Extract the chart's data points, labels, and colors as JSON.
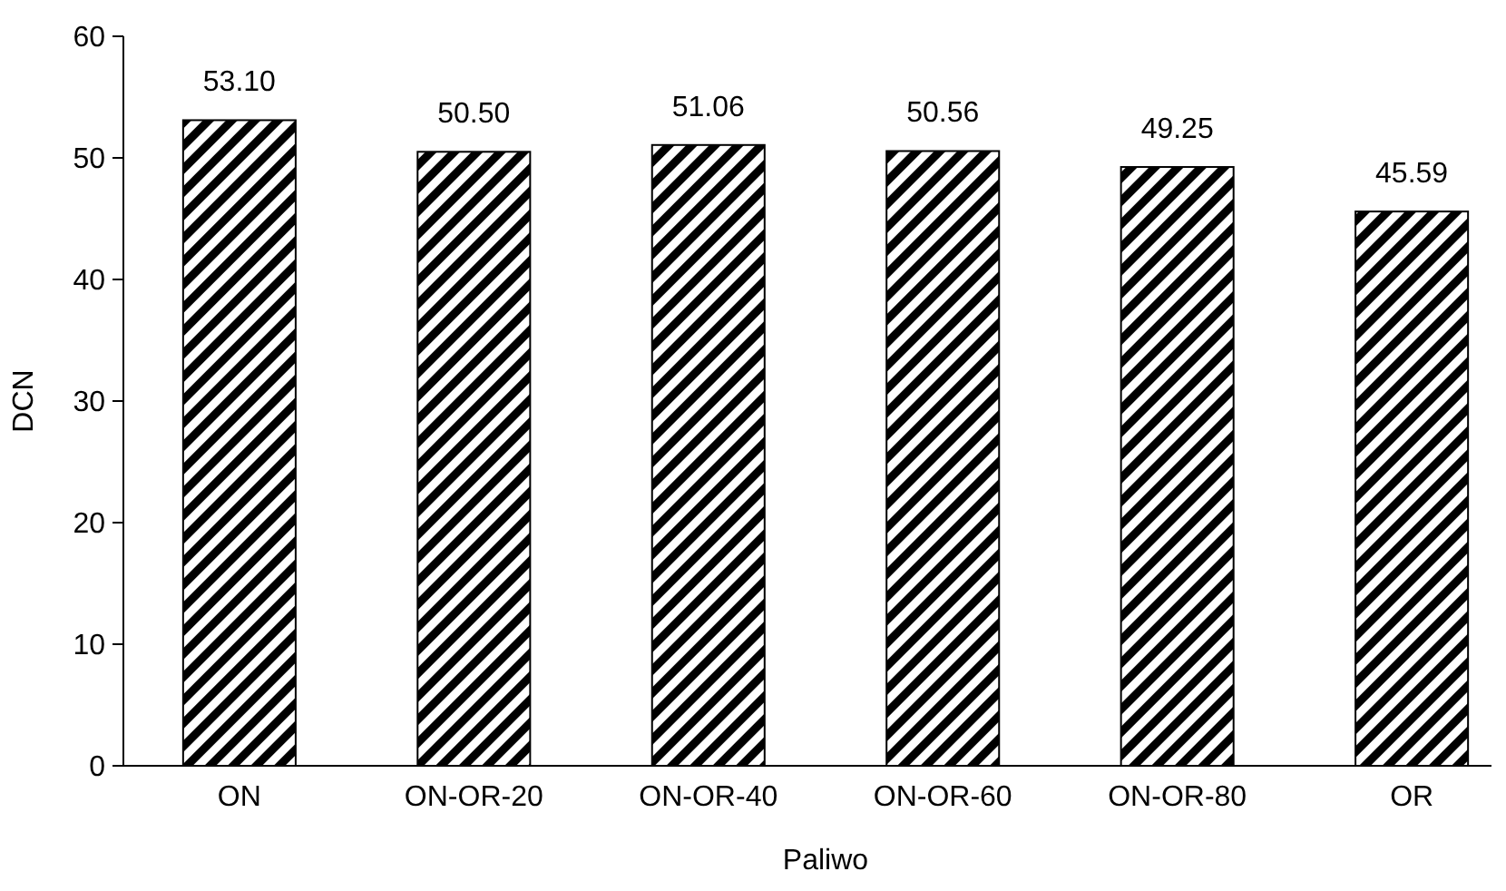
{
  "chart_data": {
    "type": "bar",
    "xlabel": "Paliwo",
    "ylabel": "DCN",
    "categories": [
      "ON",
      "ON-OR-20",
      "ON-OR-40",
      "ON-OR-60",
      "ON-OR-80",
      "OR"
    ],
    "values": [
      53.1,
      50.5,
      51.06,
      50.56,
      49.25,
      45.59
    ],
    "value_labels": [
      "53.10",
      "50.50",
      "51.06",
      "50.56",
      "49.25",
      "45.59"
    ],
    "color": "#000000",
    "ylim": [
      0,
      60
    ],
    "yticks": [
      0,
      10,
      20,
      30,
      40,
      50,
      60
    ],
    "grid": false
  }
}
